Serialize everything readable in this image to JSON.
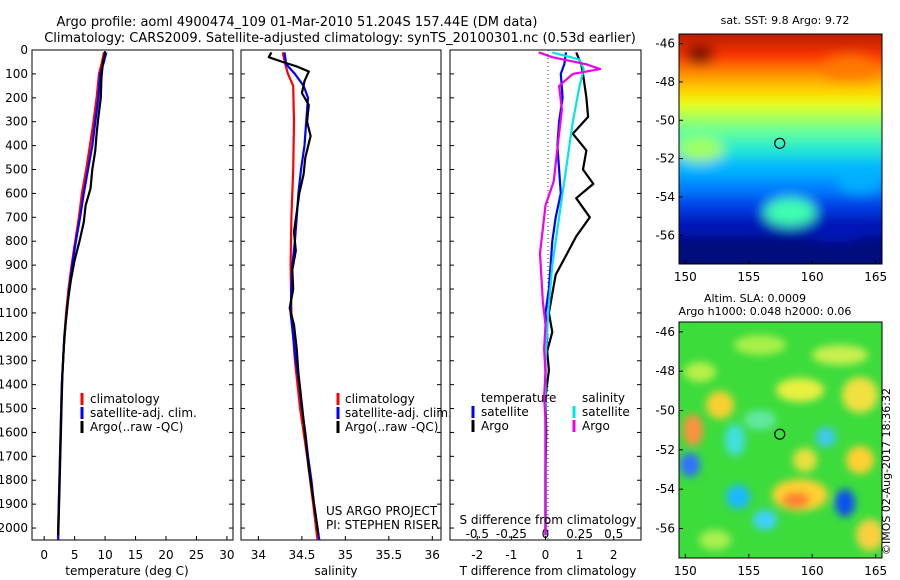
{
  "header": {
    "line1": "Argo profile: aoml 4900474_109 01-Mar-2010 51.204S 157.44E (DM data)",
    "line2": "Climatology: CARS2009. Satellite-adjusted climatology: synTS_20100301.nc (0.53d earlier)"
  },
  "project": {
    "line1": "US ARGO PROJECT",
    "line2": "PI: STEPHEN RISER"
  },
  "stamp": "©IMOS 02-Aug-2017 18:36:32",
  "colors": {
    "climatology": "#ff0000",
    "satellite_t": "#0000ff",
    "argo": "#000000",
    "satellite_s": "#00e5e5",
    "argo_s": "#ee00ee"
  },
  "chart_data": [
    {
      "type": "line",
      "xlabel": "temperature (deg C)",
      "ylabel": "",
      "xlim": [
        -2,
        31
      ],
      "ylim": [
        2050,
        0
      ],
      "xticks": [
        0,
        5,
        10,
        15,
        20,
        25,
        30
      ],
      "yticks": [
        0,
        100,
        200,
        300,
        400,
        500,
        600,
        700,
        800,
        900,
        1000,
        1100,
        1200,
        1300,
        1400,
        1500,
        1600,
        1700,
        1800,
        1900,
        2000
      ],
      "legend": [
        "climatology",
        "satellite-adj. clim.",
        "Argo(..raw -QC)"
      ],
      "series": [
        {
          "name": "climatology",
          "color": "#ff0000",
          "points": [
            [
              9.8,
              10
            ],
            [
              9.5,
              50
            ],
            [
              9.0,
              100
            ],
            [
              8.6,
              200
            ],
            [
              8.1,
              300
            ],
            [
              7.5,
              400
            ],
            [
              6.9,
              500
            ],
            [
              6.2,
              600
            ],
            [
              5.7,
              700
            ],
            [
              5.1,
              800
            ],
            [
              4.5,
              900
            ],
            [
              4.0,
              1000
            ],
            [
              3.6,
              1100
            ],
            [
              3.3,
              1200
            ],
            [
              3.1,
              1300
            ],
            [
              2.9,
              1400
            ],
            [
              2.8,
              1500
            ],
            [
              2.7,
              1600
            ],
            [
              2.6,
              1700
            ],
            [
              2.5,
              1800
            ],
            [
              2.4,
              1900
            ],
            [
              2.3,
              2000
            ],
            [
              2.3,
              2050
            ]
          ]
        },
        {
          "name": "satellite-adj. clim.",
          "color": "#0000ff",
          "points": [
            [
              10.2,
              10
            ],
            [
              9.8,
              50
            ],
            [
              9.2,
              100
            ],
            [
              8.9,
              200
            ],
            [
              8.4,
              300
            ],
            [
              7.9,
              400
            ],
            [
              7.2,
              500
            ],
            [
              6.5,
              600
            ],
            [
              5.9,
              700
            ],
            [
              5.2,
              800
            ],
            [
              4.6,
              900
            ],
            [
              4.1,
              1000
            ],
            [
              3.7,
              1100
            ],
            [
              3.3,
              1200
            ],
            [
              3.1,
              1300
            ],
            [
              2.9,
              1400
            ],
            [
              2.8,
              1500
            ],
            [
              2.7,
              1600
            ],
            [
              2.6,
              1700
            ],
            [
              2.5,
              1800
            ],
            [
              2.4,
              1900
            ],
            [
              2.3,
              2000
            ],
            [
              2.3,
              2050
            ]
          ]
        },
        {
          "name": "Argo(..raw -QC)",
          "color": "#000000",
          "points": [
            [
              10.0,
              5
            ],
            [
              9.6,
              60
            ],
            [
              9.4,
              120
            ],
            [
              9.3,
              200
            ],
            [
              8.9,
              280
            ],
            [
              8.6,
              350
            ],
            [
              8.4,
              420
            ],
            [
              7.9,
              500
            ],
            [
              7.6,
              580
            ],
            [
              6.8,
              650
            ],
            [
              6.5,
              720
            ],
            [
              5.8,
              800
            ],
            [
              5.0,
              880
            ],
            [
              4.4,
              960
            ],
            [
              3.9,
              1050
            ],
            [
              3.5,
              1150
            ],
            [
              3.2,
              1250
            ],
            [
              3.0,
              1350
            ],
            [
              2.9,
              1450
            ],
            [
              2.8,
              1550
            ],
            [
              2.7,
              1650
            ],
            [
              2.6,
              1750
            ],
            [
              2.5,
              1850
            ],
            [
              2.4,
              1950
            ],
            [
              2.3,
              2030
            ]
          ]
        }
      ]
    },
    {
      "type": "line",
      "xlabel": "salinity",
      "ylabel": "",
      "xlim": [
        33.8,
        36.1
      ],
      "ylim": [
        2050,
        0
      ],
      "xticks": [
        34,
        34.5,
        35,
        35.5,
        36
      ],
      "legend": [
        "climatology",
        "satellite-adj. clim.",
        "Argo(..raw -QC)"
      ],
      "series": [
        {
          "name": "climatology",
          "color": "#ff0000",
          "points": [
            [
              34.28,
              10
            ],
            [
              34.31,
              60
            ],
            [
              34.34,
              100
            ],
            [
              34.4,
              150
            ],
            [
              34.41,
              300
            ],
            [
              34.4,
              500
            ],
            [
              34.38,
              700
            ],
            [
              34.37,
              900
            ],
            [
              34.38,
              1100
            ],
            [
              34.42,
              1300
            ],
            [
              34.48,
              1500
            ],
            [
              34.56,
              1700
            ],
            [
              34.63,
              1900
            ],
            [
              34.68,
              2050
            ]
          ]
        },
        {
          "name": "satellite-adj. clim.",
          "color": "#0000ff",
          "points": [
            [
              34.3,
              10
            ],
            [
              34.32,
              60
            ],
            [
              34.42,
              100
            ],
            [
              34.52,
              150
            ],
            [
              34.57,
              200
            ],
            [
              34.55,
              300
            ],
            [
              34.53,
              400
            ],
            [
              34.49,
              500
            ],
            [
              34.46,
              600
            ],
            [
              34.44,
              700
            ],
            [
              34.42,
              800
            ],
            [
              34.39,
              900
            ],
            [
              34.38,
              1000
            ],
            [
              34.37,
              1100
            ],
            [
              34.4,
              1200
            ],
            [
              34.43,
              1300
            ],
            [
              34.47,
              1400
            ],
            [
              34.5,
              1500
            ],
            [
              34.54,
              1600
            ],
            [
              34.57,
              1700
            ],
            [
              34.61,
              1800
            ],
            [
              34.64,
              1900
            ],
            [
              34.68,
              2000
            ],
            [
              34.7,
              2050
            ]
          ]
        },
        {
          "name": "Argo(..raw -QC)",
          "color": "#000000",
          "points": [
            [
              34.15,
              10
            ],
            [
              34.12,
              30
            ],
            [
              34.28,
              50
            ],
            [
              34.45,
              70
            ],
            [
              34.58,
              90
            ],
            [
              34.53,
              130
            ],
            [
              34.5,
              180
            ],
            [
              34.58,
              230
            ],
            [
              34.56,
              300
            ],
            [
              34.6,
              360
            ],
            [
              34.54,
              450
            ],
            [
              34.52,
              520
            ],
            [
              34.47,
              600
            ],
            [
              34.44,
              680
            ],
            [
              34.41,
              760
            ],
            [
              34.43,
              840
            ],
            [
              34.39,
              920
            ],
            [
              34.4,
              1000
            ],
            [
              34.36,
              1080
            ],
            [
              34.41,
              1150
            ],
            [
              34.44,
              1250
            ],
            [
              34.46,
              1350
            ],
            [
              34.49,
              1450
            ],
            [
              34.52,
              1550
            ],
            [
              34.55,
              1650
            ],
            [
              34.58,
              1750
            ],
            [
              34.62,
              1850
            ],
            [
              34.66,
              1950
            ],
            [
              34.69,
              2030
            ]
          ]
        }
      ]
    },
    {
      "type": "line",
      "xlabel": "T difference from climatology",
      "xlabel2": "S difference from climatology",
      "xlim": [
        -2.8,
        2.8
      ],
      "ylim": [
        2050,
        0
      ],
      "xticks": [
        -2,
        -1,
        0,
        1,
        2
      ],
      "xticks2": [
        -0.5,
        -0.25,
        0,
        0.25,
        0.5
      ],
      "legend_t": {
        "title": "temperature",
        "items": [
          "satellite",
          "Argo"
        ]
      },
      "legend_s": {
        "title": "salinity",
        "items": [
          "satellite",
          "Argo"
        ]
      },
      "series": [
        {
          "name": "temperature satellite",
          "color": "#0000ff",
          "points": [
            [
              0.6,
              10
            ],
            [
              0.55,
              60
            ],
            [
              0.45,
              100
            ],
            [
              0.5,
              200
            ],
            [
              0.4,
              300
            ],
            [
              0.35,
              400
            ],
            [
              0.4,
              500
            ],
            [
              0.45,
              600
            ],
            [
              0.3,
              700
            ],
            [
              0.2,
              800
            ],
            [
              0.15,
              900
            ],
            [
              0.1,
              1000
            ],
            [
              0.0,
              1100
            ],
            [
              0.05,
              1200
            ],
            [
              0.0,
              1300
            ],
            [
              0.0,
              1500
            ],
            [
              0.0,
              2030
            ]
          ]
        },
        {
          "name": "temperature Argo",
          "color": "#000000",
          "points": [
            [
              0.9,
              10
            ],
            [
              1.05,
              60
            ],
            [
              1.1,
              100
            ],
            [
              1.2,
              200
            ],
            [
              1.25,
              280
            ],
            [
              0.8,
              350
            ],
            [
              1.2,
              420
            ],
            [
              1.1,
              500
            ],
            [
              1.4,
              560
            ],
            [
              0.9,
              620
            ],
            [
              1.3,
              700
            ],
            [
              0.9,
              780
            ],
            [
              0.6,
              860
            ],
            [
              0.3,
              940
            ],
            [
              0.2,
              1020
            ],
            [
              0.1,
              1100
            ],
            [
              0.2,
              1180
            ],
            [
              0.05,
              1260
            ],
            [
              0.1,
              1340
            ],
            [
              0.0,
              1450
            ],
            [
              0.02,
              1600
            ],
            [
              0.0,
              1750
            ],
            [
              0.0,
              2030
            ]
          ]
        },
        {
          "name": "salinity satellite",
          "color": "#00e5e5",
          "points": [
            [
              0.05,
              10
            ],
            [
              0.25,
              40
            ],
            [
              0.28,
              80
            ],
            [
              0.25,
              150
            ],
            [
              0.2,
              300
            ],
            [
              0.15,
              500
            ],
            [
              0.1,
              700
            ],
            [
              0.05,
              900
            ],
            [
              0.02,
              1100
            ],
            [
              0.0,
              1300
            ],
            [
              0.0,
              2030
            ]
          ]
        },
        {
          "name": "salinity Argo",
          "color": "#ee00ee",
          "points": [
            [
              -0.05,
              10
            ],
            [
              0.05,
              30
            ],
            [
              0.3,
              60
            ],
            [
              0.4,
              80
            ],
            [
              0.2,
              100
            ],
            [
              0.1,
              150
            ],
            [
              0.12,
              250
            ],
            [
              0.1,
              350
            ],
            [
              0.08,
              450
            ],
            [
              0.06,
              550
            ],
            [
              0.0,
              650
            ],
            [
              -0.02,
              750
            ],
            [
              -0.04,
              850
            ],
            [
              -0.03,
              950
            ],
            [
              -0.02,
              1050
            ],
            [
              0.0,
              1150
            ],
            [
              -0.01,
              1250
            ],
            [
              0.0,
              1350
            ],
            [
              -0.01,
              1450
            ],
            [
              0.0,
              1550
            ],
            [
              0.0,
              2030
            ]
          ]
        }
      ]
    },
    {
      "type": "heatmap",
      "title": "sat. SST: 9.8 Argo: 9.72",
      "xlim": [
        149.5,
        165.5
      ],
      "ylim": [
        -57.5,
        -45.5
      ],
      "xticks": [
        150,
        155,
        160,
        165
      ],
      "yticks": [
        -46,
        -48,
        -50,
        -52,
        -54,
        -56
      ],
      "marker": {
        "lon": 157.44,
        "lat": -51.204
      },
      "colormap": "jet (blue=cold, red=warm)"
    },
    {
      "type": "heatmap",
      "title": "Altim. SLA: 0.0009",
      "subtitle": "Argo h1000: 0.048 h2000: 0.06",
      "xlim": [
        149.5,
        165.5
      ],
      "ylim": [
        -57.5,
        -45.5
      ],
      "xticks": [
        150,
        155,
        160,
        165
      ],
      "yticks": [
        -46,
        -48,
        -50,
        -52,
        -54,
        -56
      ],
      "marker": {
        "lon": 157.44,
        "lat": -51.204
      },
      "colormap": "jet (mostly green)"
    }
  ]
}
